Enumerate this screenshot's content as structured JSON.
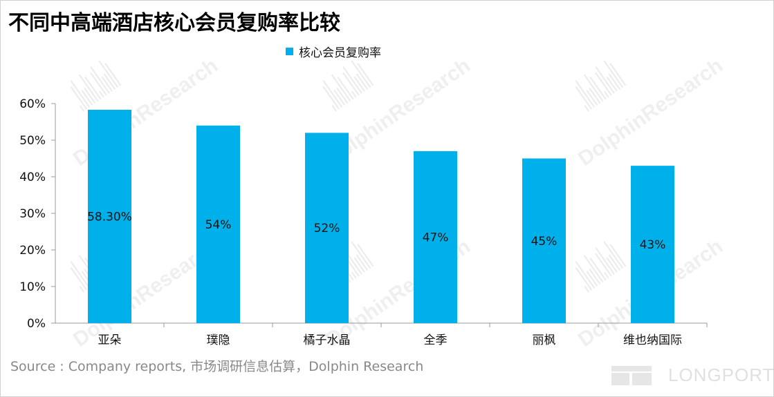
{
  "title": "不同中高端酒店核心会员复购率比较",
  "source": "Source : Company reports, 市场调研信息估算，Dolphin Research",
  "brand": "LONGPORT",
  "watermark": "DolphinResearch",
  "colors": {
    "bar": "#00b0eb",
    "axis": "#9a9a9a"
  },
  "chart_data": {
    "type": "bar",
    "categories": [
      "亚朵",
      "璞隐",
      "橘子水晶",
      "全季",
      "丽枫",
      "维也纳国际"
    ],
    "series": [
      {
        "name": "核心会员复购率",
        "values": [
          58.3,
          54,
          52,
          47,
          45,
          43
        ]
      }
    ],
    "data_labels": [
      "58.30%",
      "54%",
      "52%",
      "47%",
      "45%",
      "43%"
    ],
    "y_ticks": [
      "0%",
      "10%",
      "20%",
      "30%",
      "40%",
      "50%",
      "60%"
    ],
    "ylim": [
      0,
      60
    ],
    "legend": "top-center",
    "grid": false
  }
}
